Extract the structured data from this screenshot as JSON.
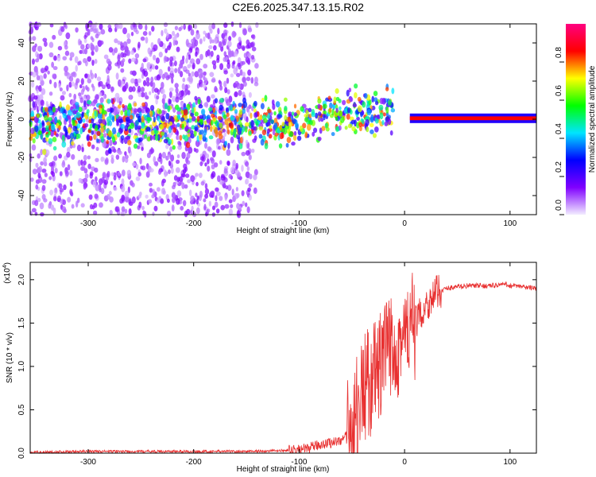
{
  "title": "C2E6.2025.347.13.15.R02",
  "chart_data": [
    {
      "type": "heatmap",
      "name": "spectrogram",
      "xlabel": "Height of straight line (km)",
      "ylabel": "Frequency (Hz)",
      "xlim": [
        -355,
        125
      ],
      "ylim": [
        -50,
        50
      ],
      "xticks": [
        -300,
        -200,
        -100,
        0,
        100
      ],
      "xtick_labels": [
        "-300",
        "-200",
        "-100",
        "0",
        "100"
      ],
      "yticks": [
        -40,
        -20,
        0,
        20,
        40
      ],
      "ytick_labels": [
        "-40",
        "-20",
        "0",
        "20",
        "40"
      ],
      "colorbar": {
        "label": "Normalized spectral amplitude",
        "range": [
          0,
          1
        ],
        "ticks": [
          0.0,
          0.2,
          0.4,
          0.6,
          0.8
        ],
        "tick_labels": [
          "0.0",
          "0.2",
          "0.4",
          "0.6",
          "0.8"
        ],
        "colors": [
          "#f2ecff",
          "#8000ff",
          "#0000ff",
          "#00e5ff",
          "#00ff00",
          "#ffff00",
          "#ff0000",
          "#ff0080"
        ]
      },
      "features": [
        {
          "description": "scattered noise",
          "x_range": [
            -355,
            -140
          ],
          "freq_range": [
            -50,
            50
          ],
          "amplitude": 0.1
        },
        {
          "description": "central band",
          "x_range": [
            -355,
            -10
          ],
          "freq_range": [
            -12,
            10
          ],
          "amplitude": 0.35
        },
        {
          "description": "steady carrier",
          "x_range": [
            5,
            125
          ],
          "freq": 0.5,
          "amplitude": 1.0
        }
      ]
    },
    {
      "type": "line",
      "name": "snr",
      "xlabel": "Height of straight line (km)",
      "ylabel": "SNR (10 * v/v)",
      "y_scale_label": "(x10",
      "y_scale_exponent": "4",
      "xlim": [
        -355,
        125
      ],
      "ylim": [
        0,
        2.2
      ],
      "xticks": [
        -300,
        -200,
        -100,
        0,
        100
      ],
      "xtick_labels": [
        "-300",
        "-200",
        "-100",
        "0",
        "100"
      ],
      "yticks": [
        0.0,
        0.5,
        1.0,
        1.5,
        2.0
      ],
      "ytick_labels": [
        "0.0",
        "0.5",
        "1.0",
        "1.5",
        "2.0"
      ],
      "color": "#e83030",
      "series": [
        {
          "name": "SNR",
          "x": [
            -355,
            -300,
            -250,
            -200,
            -150,
            -110,
            -100,
            -90,
            -80,
            -70,
            -60,
            -55,
            -50,
            -45,
            -40,
            -35,
            -30,
            -25,
            -20,
            -15,
            -10,
            -5,
            0,
            5,
            10,
            20,
            30,
            40,
            50,
            60,
            70,
            80,
            90,
            95,
            100,
            110,
            125
          ],
          "y": [
            0.01,
            0.02,
            0.02,
            0.02,
            0.02,
            0.03,
            0.04,
            0.06,
            0.1,
            0.12,
            0.15,
            0.2,
            0.3,
            0.5,
            0.7,
            0.8,
            0.85,
            0.95,
            1.05,
            1.2,
            1.25,
            1.3,
            1.3,
            1.4,
            1.5,
            1.7,
            1.85,
            1.9,
            1.92,
            1.93,
            1.93,
            1.93,
            1.94,
            1.95,
            1.93,
            1.92,
            1.9
          ]
        }
      ]
    }
  ]
}
